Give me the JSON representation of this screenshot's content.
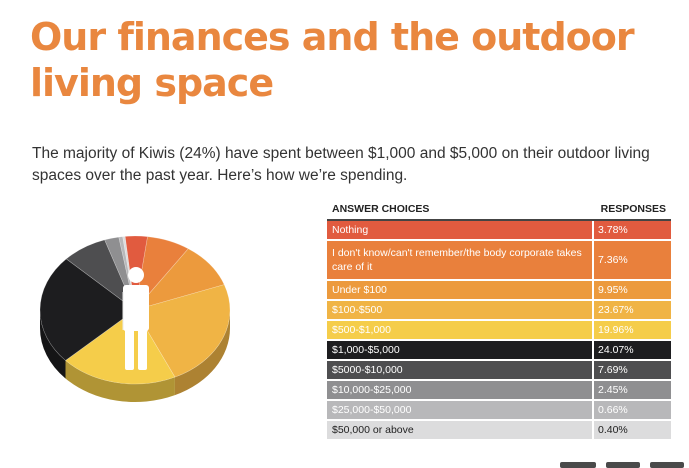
{
  "title_line1": "Our finances and the outdoor",
  "title_line2": "living space",
  "intro": "The majority of Kiwis (24%) have spent between $1,000 and $5,000 on their outdoor living spaces over the past year. Here’s how we’re spending.",
  "table": {
    "col_choice": "ANSWER CHOICES",
    "col_response": "RESPONSES"
  },
  "chart_data": {
    "type": "pie",
    "categories": [
      "Nothing",
      "I don't know/can't remember/the body corporate takes care of it",
      "Under $100",
      "$100-$500",
      "$500-$1,000",
      "$1,000-$5,000",
      "$5000-$10,000",
      "$10,000-$25,000",
      "$25,000-$50,000",
      "$50,000 or above"
    ],
    "values": [
      3.78,
      7.36,
      9.95,
      23.67,
      19.96,
      24.07,
      7.69,
      2.45,
      0.66,
      0.4
    ],
    "labels": [
      "3.78%",
      "7.36%",
      "9.95%",
      "23.67%",
      "19.96%",
      "24.07%",
      "7.69%",
      "2.45%",
      "0.66%",
      "0.40%"
    ],
    "colors": [
      "#e15b3f",
      "#e9803c",
      "#ec9a3d",
      "#f0b445",
      "#f5cd4a",
      "#1d1d1f",
      "#4e4e50",
      "#8f8f91",
      "#b8b8ba",
      "#dcdcdd"
    ],
    "text_colors": [
      "#ffffff",
      "#ffffff",
      "#ffffff",
      "#ffffff",
      "#ffffff",
      "#ffffff",
      "#ffffff",
      "#ffffff",
      "#ffffff",
      "#222222"
    ]
  }
}
